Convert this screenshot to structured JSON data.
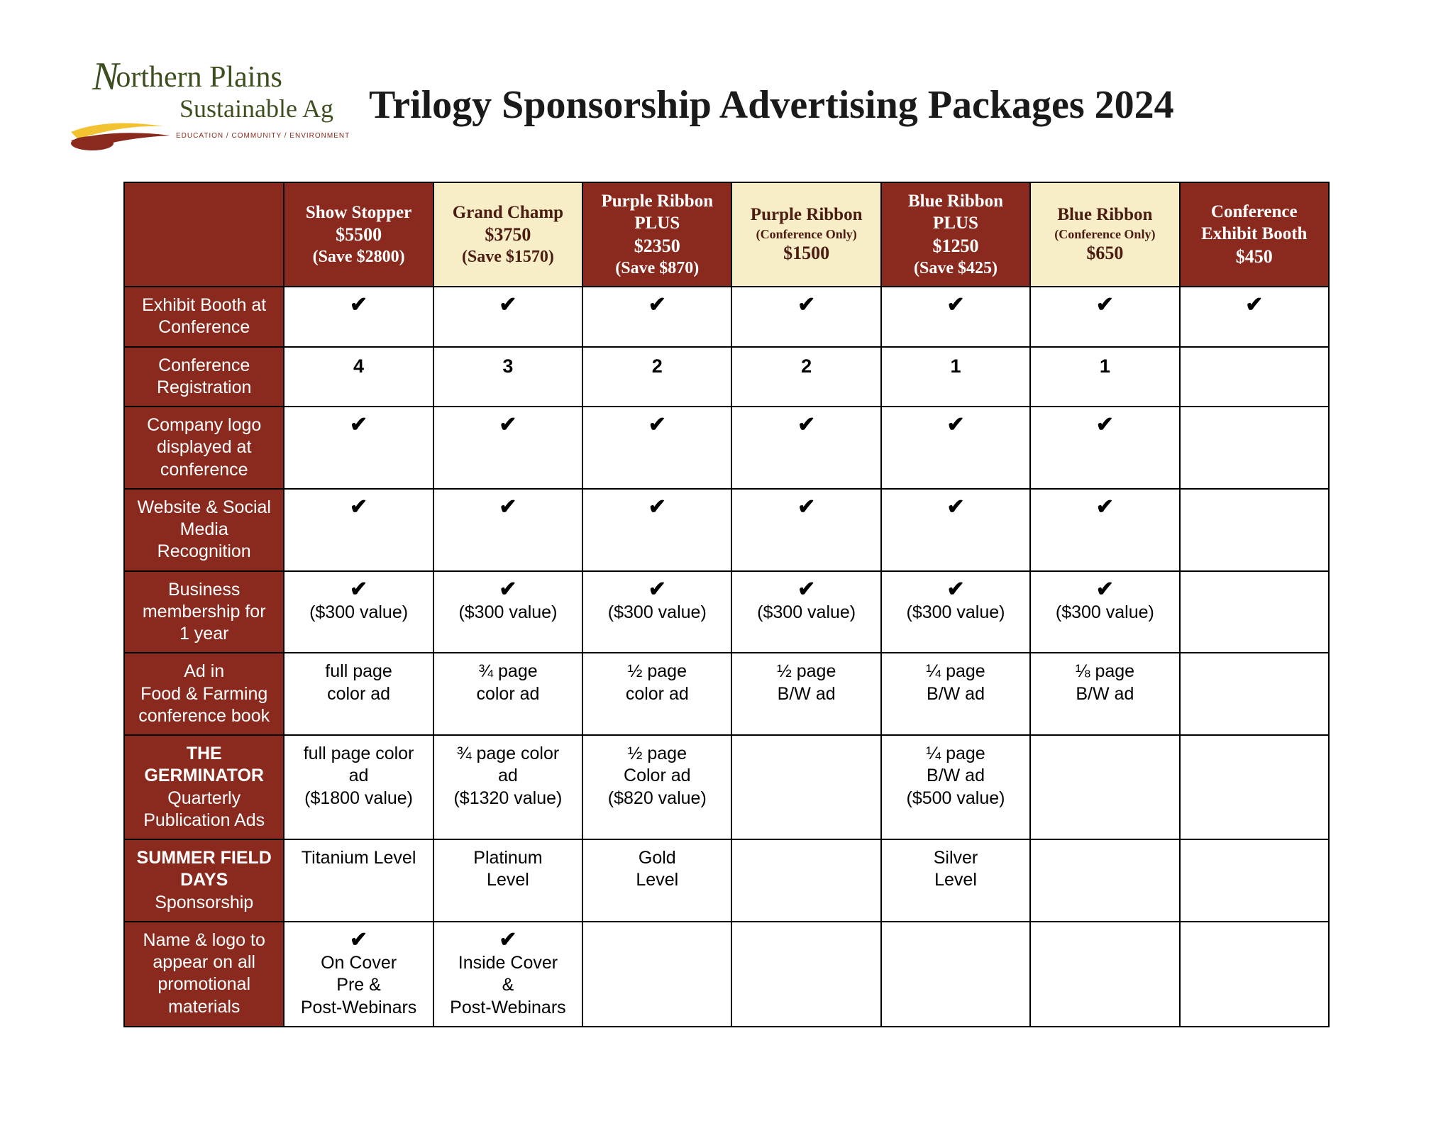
{
  "colors": {
    "brand_dark_red": "#8a2a1e",
    "brand_cream": "#f7edc6",
    "brand_green": "#3d4e1f",
    "brand_yellow": "#f2c230",
    "border": "#000000",
    "background": "#ffffff"
  },
  "logo": {
    "line1_prefix_cap": "N",
    "line1_rest": "orthern Plains",
    "line2": "Sustainable Ag",
    "tagline": "EDUCATION / COMMUNITY / ENVIRONMENT"
  },
  "title": "Trilogy Sponsorship Advertising Packages 2024",
  "checkmark": "✔",
  "table": {
    "packages": [
      {
        "name": "Show Stopper",
        "sub": "",
        "price": "$5500",
        "save": "(Save $2800)",
        "variant": "dark"
      },
      {
        "name": "Grand Champ",
        "sub": "",
        "price": "$3750",
        "save": "(Save $1570)",
        "variant": "light"
      },
      {
        "name": "Purple Ribbon PLUS",
        "sub": "",
        "price": "$2350",
        "save": "(Save $870)",
        "variant": "dark"
      },
      {
        "name": "Purple Ribbon",
        "sub": "(Conference Only)",
        "price": "$1500",
        "save": "",
        "variant": "light"
      },
      {
        "name": "Blue Ribbon PLUS",
        "sub": "",
        "price": "$1250",
        "save": "(Save $425)",
        "variant": "dark"
      },
      {
        "name": "Blue Ribbon",
        "sub": "(Conference Only)",
        "price": "$650",
        "save": "",
        "variant": "light"
      },
      {
        "name": "Conference Exhibit Booth",
        "sub": "",
        "price": "$450",
        "save": "",
        "variant": "dark"
      }
    ],
    "rows": [
      {
        "label_lines": [
          "Exhibit Booth at",
          "Conference"
        ],
        "cells": [
          "✔",
          "✔",
          "✔",
          "✔",
          "✔",
          "✔",
          "✔"
        ]
      },
      {
        "label_lines": [
          "Conference",
          "Registration"
        ],
        "cells_bold": [
          "4",
          "3",
          "2",
          "2",
          "1",
          "1",
          ""
        ]
      },
      {
        "label_lines": [
          "Company logo",
          "displayed at",
          "conference"
        ],
        "cells": [
          "✔",
          "✔",
          "✔",
          "✔",
          "✔",
          "✔",
          ""
        ]
      },
      {
        "label_lines": [
          "Website & Social",
          "Media",
          "Recognition"
        ],
        "cells": [
          "✔",
          "✔",
          "✔",
          "✔",
          "✔",
          "✔",
          ""
        ]
      },
      {
        "label_lines": [
          "Business",
          "membership for",
          "1 year"
        ],
        "cells_check_sub": [
          {
            "check": true,
            "sub": "($300 value)"
          },
          {
            "check": true,
            "sub": "($300 value)"
          },
          {
            "check": true,
            "sub": "($300 value)"
          },
          {
            "check": true,
            "sub": "($300 value)"
          },
          {
            "check": true,
            "sub": "($300 value)"
          },
          {
            "check": true,
            "sub": "($300 value)"
          },
          {
            "check": false,
            "sub": ""
          }
        ]
      },
      {
        "label_lines": [
          "Ad in",
          "Food & Farming",
          "conference book"
        ],
        "cells_multiline": [
          [
            "full page",
            "color ad"
          ],
          [
            "¾ page",
            "color ad"
          ],
          [
            "½ page",
            "color ad"
          ],
          [
            "½ page",
            "B/W ad"
          ],
          [
            "¼ page",
            "B/W ad"
          ],
          [
            "⅛ page",
            "B/W ad"
          ],
          []
        ]
      },
      {
        "label_bold_lines": [
          "THE",
          "GERMINATOR"
        ],
        "label_lines": [
          "Quarterly",
          "Publication Ads"
        ],
        "cells_multiline": [
          [
            "full page color",
            "ad",
            "($1800 value)"
          ],
          [
            "¾ page color",
            "ad",
            "($1320 value)"
          ],
          [
            "½ page",
            "Color ad",
            "($820 value)"
          ],
          [],
          [
            "¼ page",
            "B/W ad",
            "($500 value)"
          ],
          [],
          []
        ]
      },
      {
        "label_bold_lines": [
          "SUMMER FIELD",
          "DAYS"
        ],
        "label_lines": [
          "Sponsorship"
        ],
        "cells_multiline": [
          [
            "Titanium Level"
          ],
          [
            "Platinum",
            "Level"
          ],
          [
            "Gold",
            "Level"
          ],
          [],
          [
            "Silver",
            "Level"
          ],
          [],
          []
        ]
      },
      {
        "label_lines": [
          "Name & logo to",
          "appear on all",
          "promotional",
          "materials"
        ],
        "cells_check_multiline": [
          {
            "check": true,
            "lines": [
              "On Cover",
              "Pre &",
              "Post-Webinars"
            ]
          },
          {
            "check": true,
            "lines": [
              "Inside Cover",
              "&",
              "Post-Webinars"
            ]
          },
          {
            "check": false,
            "lines": []
          },
          {
            "check": false,
            "lines": []
          },
          {
            "check": false,
            "lines": []
          },
          {
            "check": false,
            "lines": []
          },
          {
            "check": false,
            "lines": []
          }
        ]
      }
    ]
  }
}
